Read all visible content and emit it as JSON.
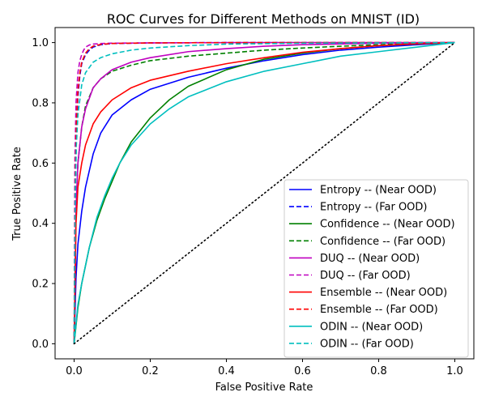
{
  "chart_data": {
    "type": "line",
    "title": "ROC Curves for Different Methods on MNIST (ID)",
    "xlabel": "False Positive Rate",
    "ylabel": "True Positive Rate",
    "xlim": [
      -0.05,
      1.05
    ],
    "ylim": [
      -0.05,
      1.05
    ],
    "xticks": [
      "0.0",
      "0.2",
      "0.4",
      "0.6",
      "0.8",
      "1.0"
    ],
    "yticks": [
      "0.0",
      "0.2",
      "0.4",
      "0.6",
      "0.8",
      "1.0"
    ],
    "grid": false,
    "legend_position": "lower-right",
    "series": [
      {
        "name": "Entropy -- (Near OOD)",
        "color": "#0000ff",
        "style": "solid",
        "x": [
          0,
          0.005,
          0.01,
          0.02,
          0.03,
          0.05,
          0.07,
          0.1,
          0.15,
          0.2,
          0.3,
          0.4,
          0.5,
          0.6,
          0.7,
          0.8,
          0.9,
          1.0
        ],
        "y": [
          0,
          0.22,
          0.33,
          0.44,
          0.52,
          0.63,
          0.7,
          0.76,
          0.81,
          0.845,
          0.885,
          0.915,
          0.94,
          0.96,
          0.975,
          0.985,
          0.993,
          1.0
        ]
      },
      {
        "name": "Entropy -- (Far OOD)",
        "color": "#0000ff",
        "style": "dashed",
        "x": [
          0,
          0.003,
          0.006,
          0.01,
          0.015,
          0.02,
          0.03,
          0.04,
          0.05,
          0.07,
          0.1,
          0.2,
          0.4,
          0.6,
          0.8,
          1.0
        ],
        "y": [
          0,
          0.5,
          0.7,
          0.82,
          0.89,
          0.93,
          0.96,
          0.975,
          0.985,
          0.993,
          0.997,
          0.999,
          1.0,
          1.0,
          1.0,
          1.0
        ]
      },
      {
        "name": "Confidence -- (Near OOD)",
        "color": "#008000",
        "style": "solid",
        "x": [
          0,
          0.01,
          0.02,
          0.04,
          0.06,
          0.08,
          0.1,
          0.12,
          0.15,
          0.2,
          0.25,
          0.3,
          0.4,
          0.5,
          0.6,
          0.7,
          0.8,
          0.9,
          1.0
        ],
        "y": [
          0,
          0.12,
          0.2,
          0.32,
          0.41,
          0.48,
          0.54,
          0.6,
          0.67,
          0.75,
          0.81,
          0.855,
          0.91,
          0.945,
          0.965,
          0.98,
          0.99,
          0.996,
          1.0
        ]
      },
      {
        "name": "Confidence -- (Far OOD)",
        "color": "#008000",
        "style": "dashed",
        "x": [
          0,
          0.005,
          0.01,
          0.02,
          0.03,
          0.05,
          0.07,
          0.1,
          0.15,
          0.2,
          0.3,
          0.4,
          0.5,
          0.6,
          0.7,
          0.8,
          0.9,
          1.0
        ],
        "y": [
          0,
          0.45,
          0.6,
          0.72,
          0.79,
          0.85,
          0.88,
          0.905,
          0.925,
          0.94,
          0.955,
          0.965,
          0.975,
          0.982,
          0.988,
          0.993,
          0.997,
          1.0
        ]
      },
      {
        "name": "DUQ -- (Near OOD)",
        "color": "#bf00bf",
        "style": "solid",
        "x": [
          0,
          0.005,
          0.01,
          0.02,
          0.03,
          0.05,
          0.07,
          0.1,
          0.15,
          0.2,
          0.3,
          0.4,
          0.5,
          0.6,
          0.8,
          1.0
        ],
        "y": [
          0,
          0.45,
          0.6,
          0.72,
          0.78,
          0.85,
          0.88,
          0.91,
          0.935,
          0.95,
          0.97,
          0.98,
          0.988,
          0.993,
          0.998,
          1.0
        ]
      },
      {
        "name": "DUQ -- (Far OOD)",
        "color": "#bf00bf",
        "style": "dashed",
        "x": [
          0,
          0.002,
          0.005,
          0.01,
          0.015,
          0.02,
          0.025,
          0.03,
          0.04,
          0.05,
          0.07,
          0.1,
          0.2,
          0.4,
          0.6,
          0.8,
          1.0
        ],
        "y": [
          0,
          0.6,
          0.8,
          0.9,
          0.94,
          0.96,
          0.975,
          0.985,
          0.992,
          0.995,
          0.997,
          0.998,
          0.999,
          1.0,
          1.0,
          1.0,
          1.0
        ]
      },
      {
        "name": "Ensemble -- (Near OOD)",
        "color": "#ff0000",
        "style": "solid",
        "x": [
          0,
          0.005,
          0.01,
          0.02,
          0.03,
          0.05,
          0.07,
          0.1,
          0.15,
          0.2,
          0.3,
          0.4,
          0.5,
          0.6,
          0.7,
          0.8,
          0.9,
          1.0
        ],
        "y": [
          0,
          0.4,
          0.52,
          0.6,
          0.66,
          0.73,
          0.77,
          0.81,
          0.85,
          0.875,
          0.905,
          0.93,
          0.95,
          0.968,
          0.98,
          0.99,
          0.996,
          1.0
        ]
      },
      {
        "name": "Ensemble -- (Far OOD)",
        "color": "#ff0000",
        "style": "dashed",
        "x": [
          0,
          0.003,
          0.006,
          0.01,
          0.015,
          0.02,
          0.03,
          0.04,
          0.05,
          0.07,
          0.1,
          0.2,
          0.4,
          0.6,
          0.8,
          1.0
        ],
        "y": [
          0,
          0.55,
          0.73,
          0.84,
          0.9,
          0.935,
          0.965,
          0.98,
          0.988,
          0.994,
          0.997,
          0.999,
          1.0,
          1.0,
          1.0,
          1.0
        ]
      },
      {
        "name": "ODIN -- (Near OOD)",
        "color": "#00bfbf",
        "style": "solid",
        "x": [
          0,
          0.01,
          0.02,
          0.04,
          0.06,
          0.08,
          0.1,
          0.12,
          0.15,
          0.2,
          0.25,
          0.3,
          0.4,
          0.5,
          0.6,
          0.7,
          0.8,
          0.9,
          1.0
        ],
        "y": [
          0,
          0.13,
          0.2,
          0.32,
          0.42,
          0.49,
          0.55,
          0.6,
          0.66,
          0.73,
          0.78,
          0.82,
          0.87,
          0.905,
          0.93,
          0.955,
          0.97,
          0.985,
          1.0
        ]
      },
      {
        "name": "ODIN -- (Far OOD)",
        "color": "#00bfbf",
        "style": "dashed",
        "x": [
          0,
          0.003,
          0.006,
          0.01,
          0.02,
          0.03,
          0.05,
          0.07,
          0.1,
          0.15,
          0.2,
          0.3,
          0.4,
          0.6,
          0.8,
          1.0
        ],
        "y": [
          0,
          0.5,
          0.66,
          0.76,
          0.86,
          0.9,
          0.935,
          0.95,
          0.963,
          0.975,
          0.982,
          0.99,
          0.995,
          0.998,
          0.999,
          1.0
        ]
      },
      {
        "name": "",
        "color": "#000000",
        "style": "dotted",
        "legend": false,
        "x": [
          0,
          1
        ],
        "y": [
          0,
          1
        ]
      }
    ]
  }
}
